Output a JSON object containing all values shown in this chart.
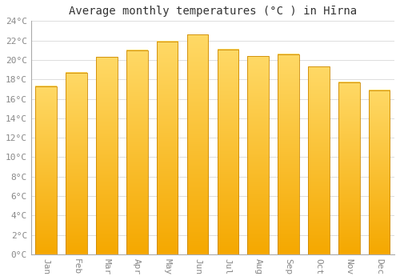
{
  "title": "Average monthly temperatures (°C ) in Hīrna",
  "months": [
    "Jan",
    "Feb",
    "Mar",
    "Apr",
    "May",
    "Jun",
    "Jul",
    "Aug",
    "Sep",
    "Oct",
    "Nov",
    "Dec"
  ],
  "temperatures": [
    17.3,
    18.7,
    20.3,
    21.0,
    21.9,
    22.6,
    21.1,
    20.4,
    20.6,
    19.3,
    17.7,
    16.9
  ],
  "bar_color_bottom": "#F5A800",
  "bar_color_top": "#FFD966",
  "bar_color_edge": "#CC8800",
  "background_color": "#FFFFFF",
  "grid_color": "#DDDDDD",
  "ylim": [
    0,
    24
  ],
  "yticks": [
    0,
    2,
    4,
    6,
    8,
    10,
    12,
    14,
    16,
    18,
    20,
    22,
    24
  ],
  "title_fontsize": 10,
  "tick_fontsize": 8,
  "tick_color": "#888888",
  "font_family": "monospace"
}
